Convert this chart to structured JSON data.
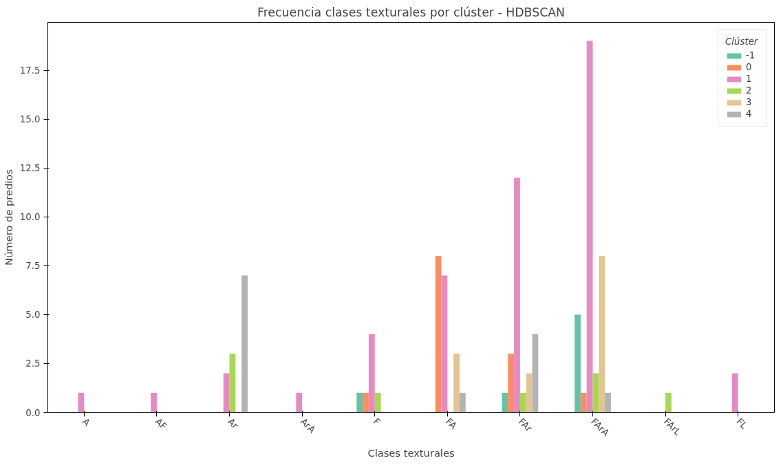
{
  "chart_data": {
    "type": "bar",
    "title": "Frecuencia clases texturales por clúster - HDBSCAN",
    "xlabel": "Clases texturales",
    "ylabel": "Número de predios",
    "legend_title": "Clúster",
    "legend": "top right",
    "grid": false,
    "categories": [
      "A",
      "AF",
      "Ar",
      "ArA",
      "F",
      "FA",
      "FAr",
      "FArA",
      "FArL",
      "FL"
    ],
    "series": [
      {
        "name": "-1",
        "color": "#66c2a5",
        "values": [
          null,
          null,
          null,
          null,
          1,
          null,
          1,
          5,
          null,
          null
        ]
      },
      {
        "name": "0",
        "color": "#fc8d62",
        "values": [
          null,
          null,
          null,
          null,
          1,
          8,
          3,
          1,
          null,
          null
        ]
      },
      {
        "name": "1",
        "color": "#e78ac3",
        "values": [
          1,
          1,
          2,
          1,
          4,
          7,
          12,
          19,
          null,
          2
        ]
      },
      {
        "name": "2",
        "color": "#a6d854",
        "values": [
          null,
          null,
          3,
          null,
          1,
          null,
          1,
          2,
          1,
          null
        ]
      },
      {
        "name": "3",
        "color": "#e5c494",
        "values": [
          null,
          null,
          null,
          null,
          null,
          3,
          2,
          8,
          null,
          null
        ]
      },
      {
        "name": "4",
        "color": "#b3b3b3",
        "values": [
          null,
          null,
          7,
          null,
          null,
          1,
          4,
          1,
          null,
          null
        ]
      }
    ],
    "ylim": [
      0,
      19.95
    ],
    "yticks": [
      {
        "value": 0,
        "label": "0.0"
      },
      {
        "value": 2.5,
        "label": "2.5"
      },
      {
        "value": 5,
        "label": "5.0"
      },
      {
        "value": 7.5,
        "label": "7.5"
      },
      {
        "value": 10,
        "label": "10.0"
      },
      {
        "value": 12.5,
        "label": "12.5"
      },
      {
        "value": 15,
        "label": "15.0"
      },
      {
        "value": 17.5,
        "label": "17.5"
      }
    ]
  }
}
